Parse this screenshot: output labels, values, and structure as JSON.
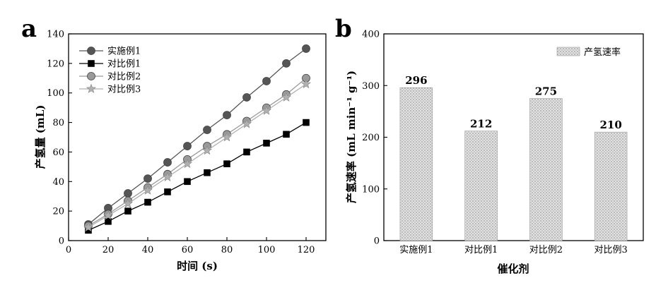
{
  "panels": {
    "a": {
      "label": "a"
    },
    "b": {
      "label": "b"
    }
  },
  "chart_data": [
    {
      "type": "line",
      "panel": "a",
      "xlabel": "时间 (s)",
      "ylabel": "产氢量 (mL)",
      "xlim": [
        0,
        130
      ],
      "ylim": [
        0,
        140
      ],
      "xticks": [
        0,
        20,
        40,
        60,
        80,
        100,
        120
      ],
      "yticks": [
        0,
        20,
        40,
        60,
        80,
        100,
        120,
        140
      ],
      "legend_position": "top-left",
      "grid": false,
      "x": [
        10,
        20,
        30,
        40,
        50,
        60,
        70,
        80,
        90,
        100,
        110,
        120
      ],
      "series": [
        {
          "name": "实施例1",
          "marker": "circle",
          "color": "#555555",
          "values": [
            11,
            22,
            32,
            42,
            53,
            64,
            75,
            85,
            97,
            108,
            120,
            130
          ]
        },
        {
          "name": "对比例1",
          "marker": "square",
          "color": "#000000",
          "values": [
            7,
            13,
            20,
            26,
            33,
            40,
            46,
            52,
            60,
            66,
            72,
            80
          ]
        },
        {
          "name": "对比例2",
          "marker": "circle",
          "color": "#9a9a9a",
          "values": [
            10,
            18,
            27,
            36,
            45,
            55,
            64,
            72,
            81,
            90,
            99,
            110
          ]
        },
        {
          "name": "对比例3",
          "marker": "star",
          "color": "#b0b0b0",
          "values": [
            9,
            17,
            25,
            34,
            43,
            52,
            61,
            70,
            79,
            88,
            97,
            106
          ]
        }
      ]
    },
    {
      "type": "bar",
      "panel": "b",
      "xlabel": "催化剂",
      "ylabel": "产氢速率 (mL min⁻¹ g⁻¹)",
      "ylim": [
        0,
        400
      ],
      "yticks": [
        0,
        100,
        200,
        300,
        400
      ],
      "legend_position": "top-right",
      "grid": false,
      "categories": [
        "实施例1",
        "对比例1",
        "对比例2",
        "对比例3"
      ],
      "series": [
        {
          "name": "产氢速率",
          "values": [
            296,
            212,
            275,
            210
          ]
        }
      ],
      "data_labels": [
        "296",
        "212",
        "275",
        "210"
      ]
    }
  ]
}
